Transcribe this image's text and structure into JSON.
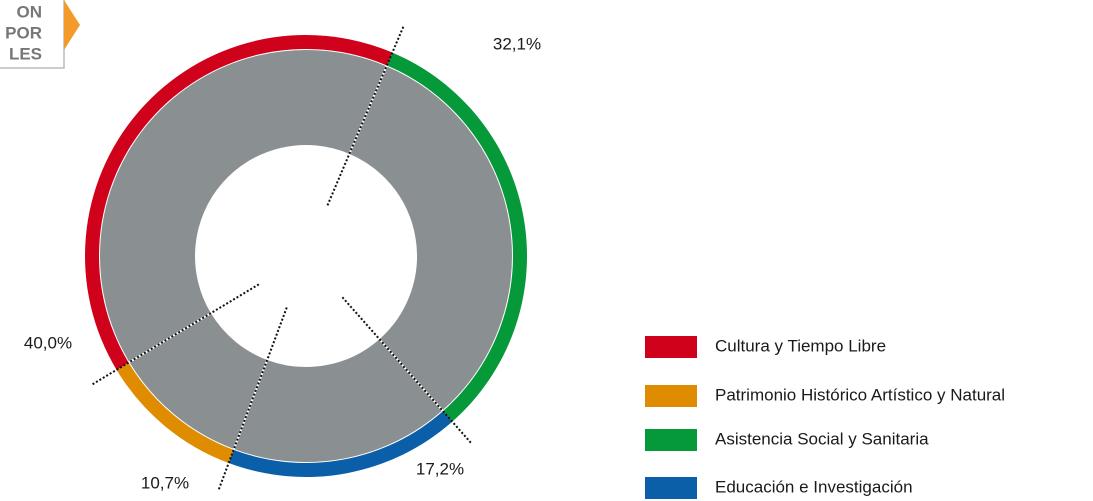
{
  "badge": [
    "ON",
    "POR",
    "LES"
  ],
  "chart_data": {
    "type": "donut",
    "categories": [
      "Cultura y Tiempo Libre",
      "Patrimonio Histórico Artístico y Natural",
      "Asistencia Social y Sanitaria",
      "Educación e Investigación"
    ],
    "values": [
      40.0,
      10.7,
      32.1,
      17.2
    ],
    "value_labels": [
      "40,0%",
      "10,7%",
      "32,1%",
      "17,2%"
    ],
    "colors": [
      "#d0021b",
      "#e08c00",
      "#05993a",
      "#0a5fa8"
    ],
    "legend": "right"
  }
}
